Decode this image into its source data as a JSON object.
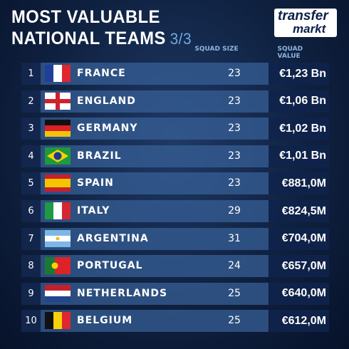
{
  "header": {
    "title_line1": "MOST VALUABLE",
    "title_line2": "NATIONAL TEAMS",
    "page": "3/3",
    "logo_top": "transfer",
    "logo_bottom": "markt"
  },
  "table": {
    "columns": [
      "SQUAD SIZE",
      "SQUAD VALUE"
    ],
    "rows": [
      [
        1,
        "FRANCE",
        23,
        "€1,23 Bn"
      ],
      [
        2,
        "ENGLAND",
        23,
        "€1,06 Bn"
      ],
      [
        3,
        "GERMANY",
        23,
        "€1,02 Bn"
      ],
      [
        4,
        "BRAZIL",
        23,
        "€1,01 Bn"
      ],
      [
        5,
        "SPAIN",
        23,
        "€881,0M"
      ],
      [
        6,
        "ITALY",
        29,
        "€824,5M"
      ],
      [
        7,
        "ARGENTINA",
        31,
        "€704,0M"
      ],
      [
        8,
        "PORTUGAL",
        24,
        "€657,0M"
      ],
      [
        9,
        "NETHERLANDS",
        25,
        "€640,0M"
      ],
      [
        10,
        "BELGIUM",
        25,
        "€612,0M"
      ]
    ]
  }
}
